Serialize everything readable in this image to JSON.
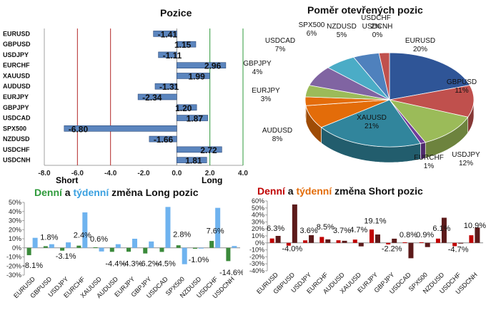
{
  "charts": {
    "positions": {
      "title": "Pozice",
      "short_label": "Short",
      "long_label": "Long",
      "xlim": [
        -8,
        4
      ]
    },
    "pie": {
      "title": "Poměr  otevřených pozic"
    },
    "long_change": {
      "title_part1": "Denní",
      "title_part2": " a ",
      "title_part3": "týdenní",
      "title_part4": " změna Long pozic"
    },
    "short_change": {
      "title_part1": "Denní",
      "title_part2": " a ",
      "title_part3": "týdenní",
      "title_part4": " změna Short pozic"
    }
  },
  "chart_data": [
    {
      "type": "bar",
      "orientation": "horizontal",
      "title": "Pozice",
      "categories": [
        "EURUSD",
        "GBPUSD",
        "USDJPY",
        "EURCHF",
        "XAUUSD",
        "AUDUSD",
        "EURJPY",
        "GBPJPY",
        "USDCAD",
        "SPX500",
        "NZDUSD",
        "USDCHF",
        "USDCNH"
      ],
      "values": [
        -1.41,
        1.15,
        -1.11,
        2.96,
        1.99,
        -1.31,
        -2.34,
        1.2,
        1.87,
        -6.8,
        -1.66,
        2.72,
        1.81
      ],
      "value_labels": [
        "-1.41",
        "1.15",
        "-1.11",
        "2.96",
        "1.99",
        "-1.31",
        "-2.34",
        "1.20",
        "1.87",
        "-6.80",
        "-1.66",
        "2.72",
        "1.81"
      ],
      "xlim": [
        -8,
        4
      ],
      "xticks": [
        "-8.0",
        "-6.0",
        "-4.0",
        "-2.0",
        "0.0",
        "2.0",
        "4.0"
      ],
      "xticks_values": [
        -8,
        -6,
        -4,
        -2,
        0,
        2,
        4
      ],
      "reference_lines": [
        -6,
        -4,
        2
      ],
      "colors": {
        "bar": "#5b85be",
        "short_line": "#b42828",
        "long_line": "#2e9a3a"
      }
    },
    {
      "type": "pie",
      "title": "Poměr  otevřených pozic",
      "categories": [
        "EURUSD",
        "GBPUSD",
        "USDJPY",
        "EURCHF",
        "XAUUSD",
        "AUDUSD",
        "EURJPY",
        "GBPJPY",
        "USDCAD",
        "SPX500",
        "NZDUSD",
        "USDCHF",
        "USDCNH"
      ],
      "values": [
        20,
        11,
        12,
        1,
        21,
        8,
        3,
        4,
        7,
        6,
        5,
        2,
        0
      ],
      "labels": [
        "EURUSD\n20%",
        "GBPUSD\n11%",
        "USDJPY\n12%",
        "EURCHF\n1%",
        "XAUUSD\n21%",
        "AUDUSD\n8%",
        "EURJPY\n3%",
        "GBPJPY\n4%",
        "USDCAD\n7%",
        "SPX500\n6%",
        "NZDUSD\n5%",
        "USDCHF\n2%",
        "USDCNH\n0%"
      ],
      "colors": [
        "#2f5597",
        "#c0504d",
        "#9bbb59",
        "#6f3c9a",
        "#31859c",
        "#e36c09",
        "#e46c0a",
        "#9bbb59",
        "#8064a2",
        "#4bacc6",
        "#4f81bd",
        "#c0504d",
        "#9bbb59"
      ]
    },
    {
      "type": "bar",
      "title": "Denní a týdenní změna Long pozic",
      "categories": [
        "EURUSD",
        "GBPUSD",
        "USDJPY",
        "EURCHF",
        "XAUUSD",
        "AUDUSD",
        "EURJPY",
        "GBPJPY",
        "USDCAD",
        "SPX500",
        "NZDUSD",
        "USDCHF",
        "USDCNH"
      ],
      "series": [
        {
          "name": "Denní",
          "values": [
            -8.1,
            1.8,
            -3.1,
            2.4,
            0.6,
            -4.4,
            -4.3,
            -6.2,
            -4.5,
            2.8,
            -1.0,
            7.6,
            -14.6
          ]
        },
        {
          "name": "týdenní",
          "values": [
            11,
            4,
            6,
            39,
            -4,
            4,
            10,
            7,
            45,
            -18,
            0,
            44,
            2
          ]
        }
      ],
      "value_labels": [
        "-8.1%",
        "1.8%",
        "-3.1%",
        "2.4%",
        "0.6%",
        "-4.4%",
        "-4.3%",
        "-6.2%",
        "-4.5%",
        "2.8%",
        "-1.0%",
        "7.6%",
        "-14.6%"
      ],
      "ylim": [
        -30,
        50
      ],
      "yticks": [
        "-30%",
        "-20%",
        "-10%",
        "0%",
        "10%",
        "20%",
        "30%",
        "40%",
        "50%"
      ],
      "yticks_values": [
        -30,
        -20,
        -10,
        0,
        10,
        20,
        30,
        40,
        50
      ],
      "colors": {
        "daily": "#3b8a3b",
        "weekly": "#6fb3ef"
      }
    },
    {
      "type": "bar",
      "title": "Denní a týdenní změna Short pozic",
      "categories": [
        "EURUSD",
        "GBPUSD",
        "USDJPY",
        "EURCHF",
        "AUDUSD",
        "XAUUSD",
        "EURJPY",
        "GBPJPY",
        "USDCAD",
        "SPX500",
        "NZDUSD",
        "USDCHF",
        "USDCNH"
      ],
      "series": [
        {
          "name": "Denní",
          "values": [
            6.3,
            -4.0,
            3.6,
            8.5,
            3.7,
            4.7,
            19.1,
            -2.2,
            0.8,
            0.9,
            6.1,
            -4.7,
            10.9
          ]
        },
        {
          "name": "týdenní",
          "values": [
            10,
            55,
            11,
            5,
            3,
            -5,
            12,
            6,
            -22,
            -6,
            36,
            -1,
            22
          ]
        }
      ],
      "value_labels": [
        "6.3%",
        "-4.0%",
        "3.6%",
        "8.5%",
        "3.7%",
        "4.7%",
        "19.1%",
        "-2.2%",
        "0.8%",
        "0.9%",
        "6.1%",
        "-4.7%",
        "10.9%"
      ],
      "ylim": [
        -40,
        60
      ],
      "yticks": [
        "-40%",
        "-30%",
        "-20%",
        "-10%",
        "0%",
        "10%",
        "20%",
        "30%",
        "40%",
        "50%",
        "60%"
      ],
      "yticks_values": [
        -40,
        -30,
        -20,
        -10,
        0,
        10,
        20,
        30,
        40,
        50,
        60
      ],
      "colors": {
        "daily": "#c00000",
        "weekly": "#5c1a1a"
      }
    }
  ]
}
